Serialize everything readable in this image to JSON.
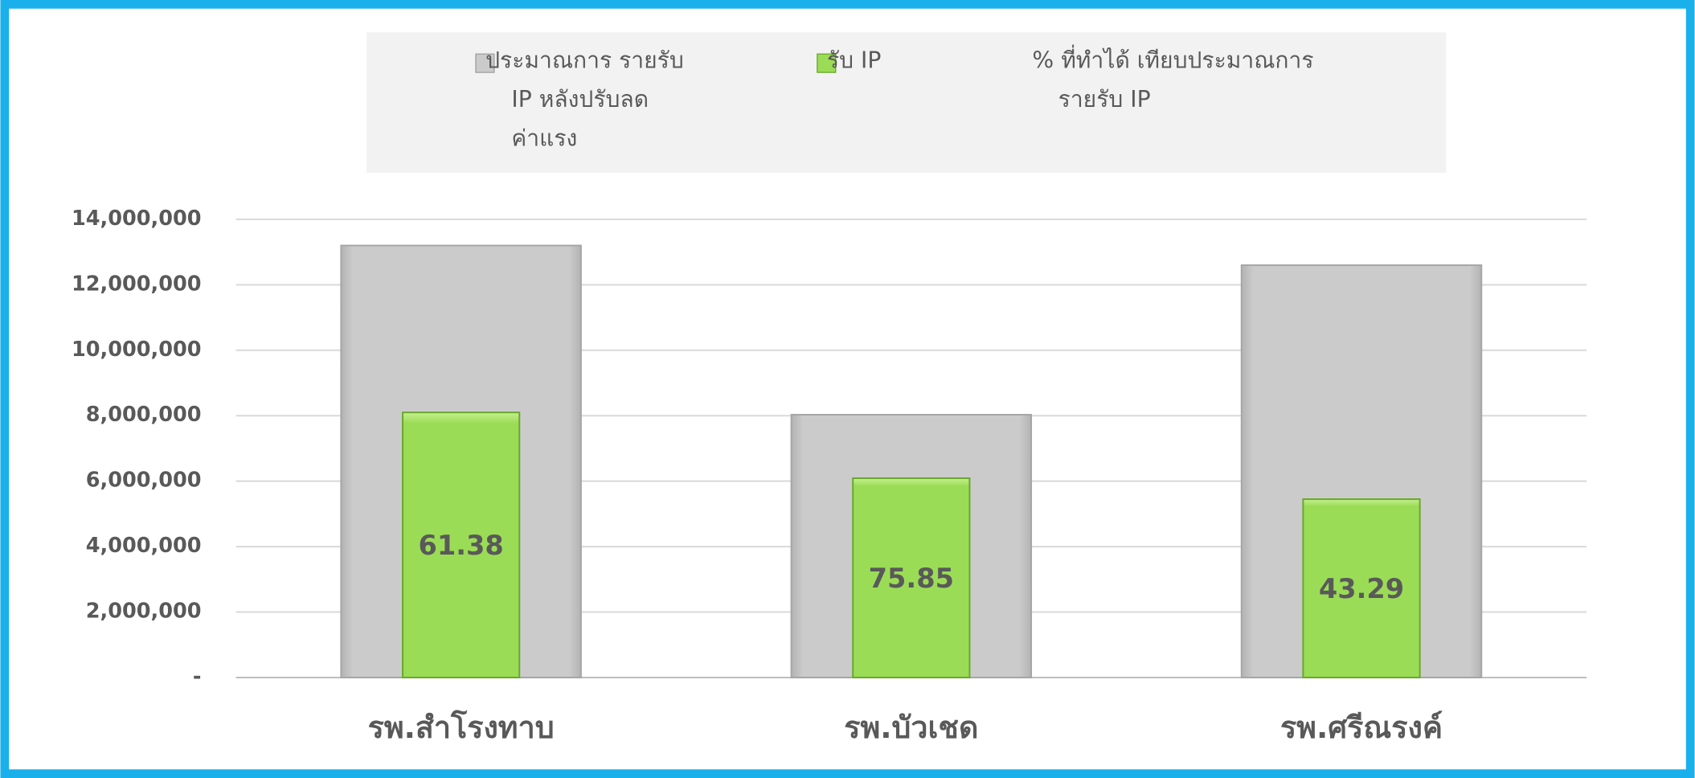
{
  "chart_data": {
    "type": "bar",
    "categories": [
      "รพ.สำโรงทาบ",
      "รพ.บัวเชด",
      "รพ.ศรีณรงค์"
    ],
    "series": [
      {
        "name": "ประมาณการ รายรับ IP หลังปรับลดค่าแรง",
        "color": "#c9c9c9",
        "values": [
          13200000,
          8030000,
          12600000
        ]
      },
      {
        "name": "รับ IP",
        "color": "#9bdc56",
        "values": [
          8100000,
          6090000,
          5450000
        ]
      },
      {
        "name": "% ที่ทำได้ เทียบประมาณการรายรับ IP",
        "values": [
          61.38,
          75.85,
          43.29
        ]
      }
    ],
    "ylim": [
      0,
      14000000
    ],
    "yticks": [
      {
        "value": 0,
        "label": "-"
      },
      {
        "value": 2000000,
        "label": "2,000,000"
      },
      {
        "value": 4000000,
        "label": "4,000,000"
      },
      {
        "value": 6000000,
        "label": "6,000,000"
      },
      {
        "value": 8000000,
        "label": "8,000,000"
      },
      {
        "value": 10000000,
        "label": "10,000,000"
      },
      {
        "value": 12000000,
        "label": "12,000,000"
      },
      {
        "value": 14000000,
        "label": "14,000,000"
      }
    ],
    "grid": true
  }
}
